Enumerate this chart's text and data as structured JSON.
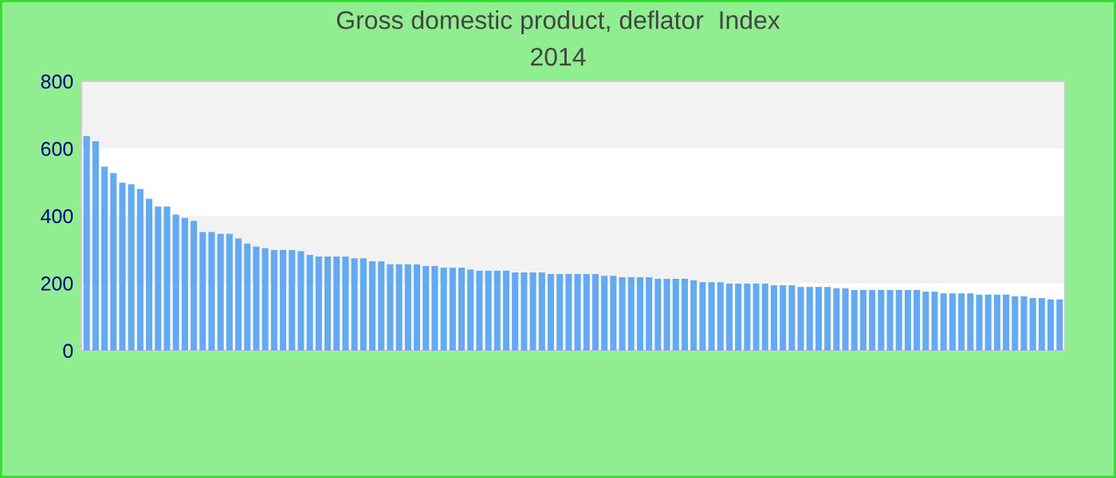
{
  "chart_data": {
    "type": "bar",
    "title": "Gross domestic product, deflator  Index",
    "subtitle": "2014",
    "categories": [
      null,
      null,
      null,
      null,
      null,
      null,
      null,
      null,
      null,
      null,
      null,
      null,
      null,
      null,
      null,
      null,
      null,
      null,
      null,
      null,
      null,
      null,
      null,
      null,
      null,
      null,
      null,
      null,
      null,
      null,
      null,
      null,
      null,
      null,
      null,
      null,
      null,
      null,
      null,
      null,
      null,
      null,
      null,
      null,
      null,
      null,
      null,
      null,
      null,
      null,
      null,
      null,
      null,
      null,
      null,
      null,
      null,
      null,
      null,
      null,
      null,
      null,
      null,
      null,
      null,
      null,
      null,
      null,
      null,
      null,
      null,
      null,
      null,
      null,
      null,
      null,
      null,
      null,
      null,
      null,
      null,
      null,
      null,
      null,
      null,
      null,
      null,
      null,
      null,
      null,
      null,
      null,
      null,
      null,
      null,
      null,
      null,
      null,
      null,
      null,
      null,
      null,
      null,
      null,
      null,
      null,
      null,
      null,
      null,
      null
    ],
    "values": [
      637,
      622,
      546,
      527,
      499,
      494,
      480,
      451,
      428,
      428,
      404,
      394,
      385,
      352,
      352,
      347,
      347,
      333,
      318,
      309,
      304,
      299,
      299,
      299,
      295,
      284,
      279,
      279,
      279,
      279,
      274,
      274,
      265,
      265,
      256,
      256,
      256,
      256,
      251,
      251,
      246,
      246,
      246,
      241,
      237,
      237,
      237,
      237,
      232,
      232,
      232,
      232,
      227,
      227,
      227,
      227,
      227,
      227,
      222,
      222,
      218,
      218,
      218,
      218,
      213,
      213,
      213,
      213,
      208,
      203,
      203,
      203,
      199,
      199,
      199,
      199,
      199,
      194,
      194,
      194,
      189,
      189,
      189,
      189,
      185,
      185,
      180,
      180,
      180,
      180,
      180,
      180,
      180,
      180,
      175,
      175,
      170,
      170,
      170,
      170,
      166,
      166,
      166,
      166,
      161,
      161,
      156,
      156,
      152,
      152
    ],
    "color": "#64aaf2",
    "ylim": [
      0,
      800
    ],
    "yticks": [
      0,
      200,
      400,
      600,
      800
    ],
    "bands": [
      {
        "axis": "y",
        "from": 200,
        "to": 400,
        "color": "#f2f2f2"
      },
      {
        "axis": "y",
        "from": 600,
        "to": 800,
        "color": "#f2f2f2"
      }
    ],
    "grid": false
  }
}
